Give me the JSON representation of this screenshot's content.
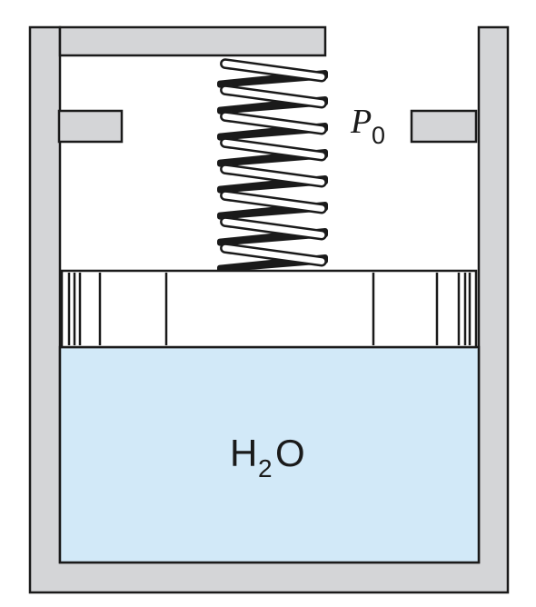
{
  "diagram": {
    "water_label": {
      "main": "H",
      "subscript": "2",
      "tail": "O"
    },
    "pressure_label": {
      "symbol": "P",
      "subscript": "0"
    },
    "spring_coils": 8,
    "colors": {
      "wall": "#d4d5d7",
      "water": "#d2e9f8",
      "outline": "#1a1a1a",
      "piston": "#ffffff",
      "spring_dark": "#1a1a1a"
    }
  }
}
